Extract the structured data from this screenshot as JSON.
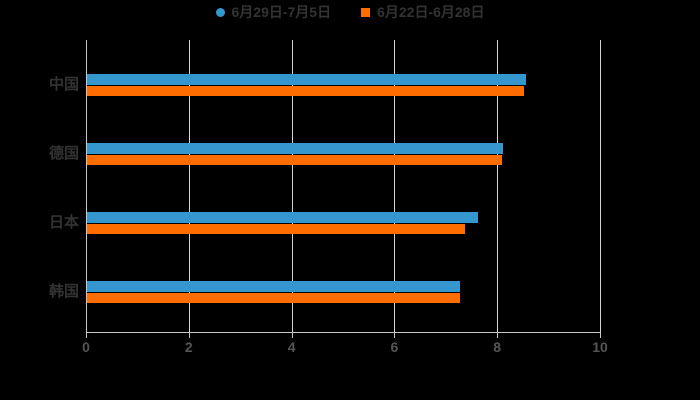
{
  "colors": {
    "background": "#000000",
    "grid": "#d4d4d4",
    "axis": "#c8c8c8",
    "label_text": "#333333",
    "tick_text": "#555555",
    "series_blue": "#3697CE",
    "series_orange": "#FF6C00"
  },
  "legend": {
    "items": [
      {
        "label": "6月29日-7月5日",
        "marker": "circle",
        "color": "#3697CE"
      },
      {
        "label": "6月22日-6月28日",
        "marker": "square",
        "color": "#FF6C00"
      }
    ]
  },
  "chart_data": {
    "type": "bar",
    "orientation": "horizontal",
    "title": "",
    "xlabel": "",
    "ylabel": "",
    "categories": [
      "中国",
      "德国",
      "日本",
      "韩国"
    ],
    "series": [
      {
        "name": "6月29日-7月5日",
        "color": "#3697CE",
        "marker": "circle",
        "values": [
          8.55,
          8.1,
          7.6,
          7.25
        ]
      },
      {
        "name": "6月22日-6月28日",
        "color": "#FF6C00",
        "marker": "square",
        "values": [
          8.5,
          8.08,
          7.35,
          7.25
        ]
      }
    ],
    "xlim": [
      0,
      10
    ],
    "xticks": [
      0,
      2,
      4,
      6,
      8,
      10
    ],
    "grid": true,
    "legend_position": "top-center"
  }
}
